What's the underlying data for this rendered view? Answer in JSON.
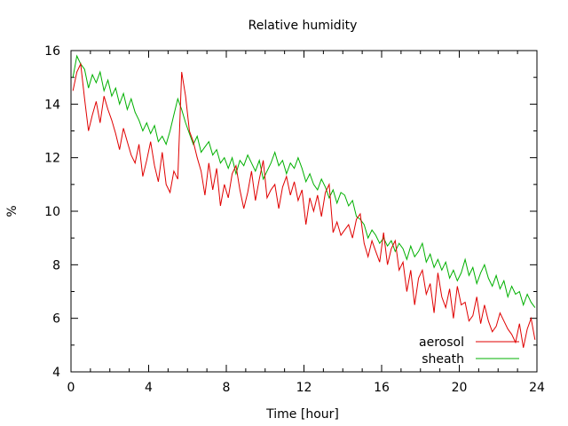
{
  "chart_data": {
    "type": "line",
    "title": "Relative humidity",
    "xlabel": "Time [hour]",
    "ylabel": "%",
    "xlim": [
      0,
      24
    ],
    "ylim": [
      4,
      16
    ],
    "xticks": [
      "0",
      "4",
      "8",
      "12",
      "16",
      "20",
      "24"
    ],
    "yticks": [
      "4",
      "6",
      "8",
      "10",
      "12",
      "14",
      "16"
    ],
    "grid": false,
    "legend": "bottom-right",
    "series": [
      {
        "name": "aerosol",
        "color": "#e00000",
        "x": [
          0.1,
          0.3,
          0.5,
          0.7,
          0.9,
          1.1,
          1.3,
          1.5,
          1.7,
          1.9,
          2.1,
          2.3,
          2.5,
          2.7,
          2.9,
          3.1,
          3.3,
          3.5,
          3.7,
          3.9,
          4.1,
          4.3,
          4.5,
          4.7,
          4.9,
          5.1,
          5.3,
          5.5,
          5.7,
          5.9,
          6.1,
          6.3,
          6.5,
          6.7,
          6.9,
          7.1,
          7.3,
          7.5,
          7.7,
          7.9,
          8.1,
          8.3,
          8.5,
          8.7,
          8.9,
          9.1,
          9.3,
          9.5,
          9.7,
          9.9,
          10.1,
          10.3,
          10.5,
          10.7,
          10.9,
          11.1,
          11.3,
          11.5,
          11.7,
          11.9,
          12.1,
          12.3,
          12.5,
          12.7,
          12.9,
          13.1,
          13.3,
          13.5,
          13.7,
          13.9,
          14.1,
          14.3,
          14.5,
          14.7,
          14.9,
          15.1,
          15.3,
          15.5,
          15.7,
          15.9,
          16.1,
          16.3,
          16.5,
          16.7,
          16.9,
          17.1,
          17.3,
          17.5,
          17.7,
          17.9,
          18.1,
          18.3,
          18.5,
          18.7,
          18.9,
          19.1,
          19.3,
          19.5,
          19.7,
          19.9,
          20.1,
          20.3,
          20.5,
          20.7,
          20.9,
          21.1,
          21.3,
          21.5,
          21.7,
          21.9,
          22.1,
          22.3,
          22.5,
          22.7,
          22.9,
          23.1,
          23.3,
          23.5,
          23.7,
          23.9
        ],
        "y": [
          14.5,
          15.2,
          15.5,
          14.2,
          13.0,
          13.6,
          14.1,
          13.3,
          14.3,
          13.8,
          13.4,
          12.9,
          12.3,
          13.1,
          12.6,
          12.1,
          11.8,
          12.5,
          11.3,
          11.9,
          12.6,
          11.7,
          11.1,
          12.2,
          11.0,
          10.7,
          11.5,
          11.2,
          15.2,
          14.3,
          13.0,
          12.6,
          12.0,
          11.5,
          10.6,
          11.8,
          10.8,
          11.6,
          10.2,
          11.0,
          10.5,
          11.4,
          11.7,
          10.8,
          10.1,
          10.7,
          11.5,
          10.4,
          11.2,
          11.9,
          10.5,
          10.8,
          11.0,
          10.1,
          10.9,
          11.3,
          10.6,
          11.1,
          10.4,
          10.8,
          9.5,
          10.5,
          10.0,
          10.6,
          9.8,
          10.7,
          11.0,
          9.2,
          9.6,
          9.1,
          9.3,
          9.5,
          9.0,
          9.7,
          9.9,
          8.8,
          8.3,
          8.9,
          8.5,
          8.1,
          9.2,
          8.0,
          8.6,
          8.9,
          7.8,
          8.1,
          7.0,
          7.8,
          6.5,
          7.5,
          7.8,
          6.9,
          7.3,
          6.2,
          7.7,
          6.8,
          6.4,
          7.1,
          6.0,
          7.2,
          6.5,
          6.6,
          5.9,
          6.1,
          6.8,
          5.8,
          6.5,
          5.9,
          5.5,
          5.7,
          6.2,
          5.9,
          5.6,
          5.4,
          5.1,
          5.8,
          4.9,
          5.6,
          6.0,
          5.2
        ]
      },
      {
        "name": "sheath",
        "color": "#00b000",
        "x": [
          0.1,
          0.3,
          0.5,
          0.7,
          0.9,
          1.1,
          1.3,
          1.5,
          1.7,
          1.9,
          2.1,
          2.3,
          2.5,
          2.7,
          2.9,
          3.1,
          3.3,
          3.5,
          3.7,
          3.9,
          4.1,
          4.3,
          4.5,
          4.7,
          4.9,
          5.1,
          5.3,
          5.5,
          5.7,
          5.9,
          6.1,
          6.3,
          6.5,
          6.7,
          6.9,
          7.1,
          7.3,
          7.5,
          7.7,
          7.9,
          8.1,
          8.3,
          8.5,
          8.7,
          8.9,
          9.1,
          9.3,
          9.5,
          9.7,
          9.9,
          10.1,
          10.3,
          10.5,
          10.7,
          10.9,
          11.1,
          11.3,
          11.5,
          11.7,
          11.9,
          12.1,
          12.3,
          12.5,
          12.7,
          12.9,
          13.1,
          13.3,
          13.5,
          13.7,
          13.9,
          14.1,
          14.3,
          14.5,
          14.7,
          14.9,
          15.1,
          15.3,
          15.5,
          15.7,
          15.9,
          16.1,
          16.3,
          16.5,
          16.7,
          16.9,
          17.1,
          17.3,
          17.5,
          17.7,
          17.9,
          18.1,
          18.3,
          18.5,
          18.7,
          18.9,
          19.1,
          19.3,
          19.5,
          19.7,
          19.9,
          20.1,
          20.3,
          20.5,
          20.7,
          20.9,
          21.1,
          21.3,
          21.5,
          21.7,
          21.9,
          22.1,
          22.3,
          22.5,
          22.7,
          22.9,
          23.1,
          23.3,
          23.5,
          23.7,
          23.9
        ],
        "y": [
          15.0,
          15.8,
          15.5,
          15.3,
          14.6,
          15.1,
          14.8,
          15.2,
          14.5,
          14.9,
          14.3,
          14.6,
          14.0,
          14.4,
          13.8,
          14.2,
          13.7,
          13.4,
          13.0,
          13.3,
          12.9,
          13.2,
          12.6,
          12.8,
          12.5,
          13.0,
          13.6,
          14.2,
          13.8,
          13.3,
          12.9,
          12.5,
          12.8,
          12.2,
          12.4,
          12.6,
          12.1,
          12.3,
          11.8,
          12.0,
          11.6,
          12.0,
          11.4,
          11.9,
          11.7,
          12.1,
          11.8,
          11.5,
          11.9,
          11.2,
          11.5,
          11.8,
          12.2,
          11.7,
          11.9,
          11.4,
          11.8,
          11.6,
          12.0,
          11.6,
          11.1,
          11.4,
          11.0,
          10.8,
          11.2,
          10.9,
          10.5,
          10.8,
          10.3,
          10.7,
          10.6,
          10.2,
          10.4,
          9.8,
          9.7,
          9.5,
          9.0,
          9.3,
          9.1,
          8.8,
          9.0,
          8.7,
          8.9,
          8.5,
          8.8,
          8.6,
          8.2,
          8.7,
          8.3,
          8.5,
          8.8,
          8.1,
          8.4,
          7.9,
          8.2,
          7.8,
          8.1,
          7.5,
          7.8,
          7.4,
          7.7,
          8.2,
          7.6,
          7.9,
          7.3,
          7.7,
          8.0,
          7.5,
          7.2,
          7.6,
          7.1,
          7.4,
          6.8,
          7.2,
          6.9,
          7.0,
          6.5,
          6.9,
          6.6,
          6.4
        ]
      }
    ]
  }
}
